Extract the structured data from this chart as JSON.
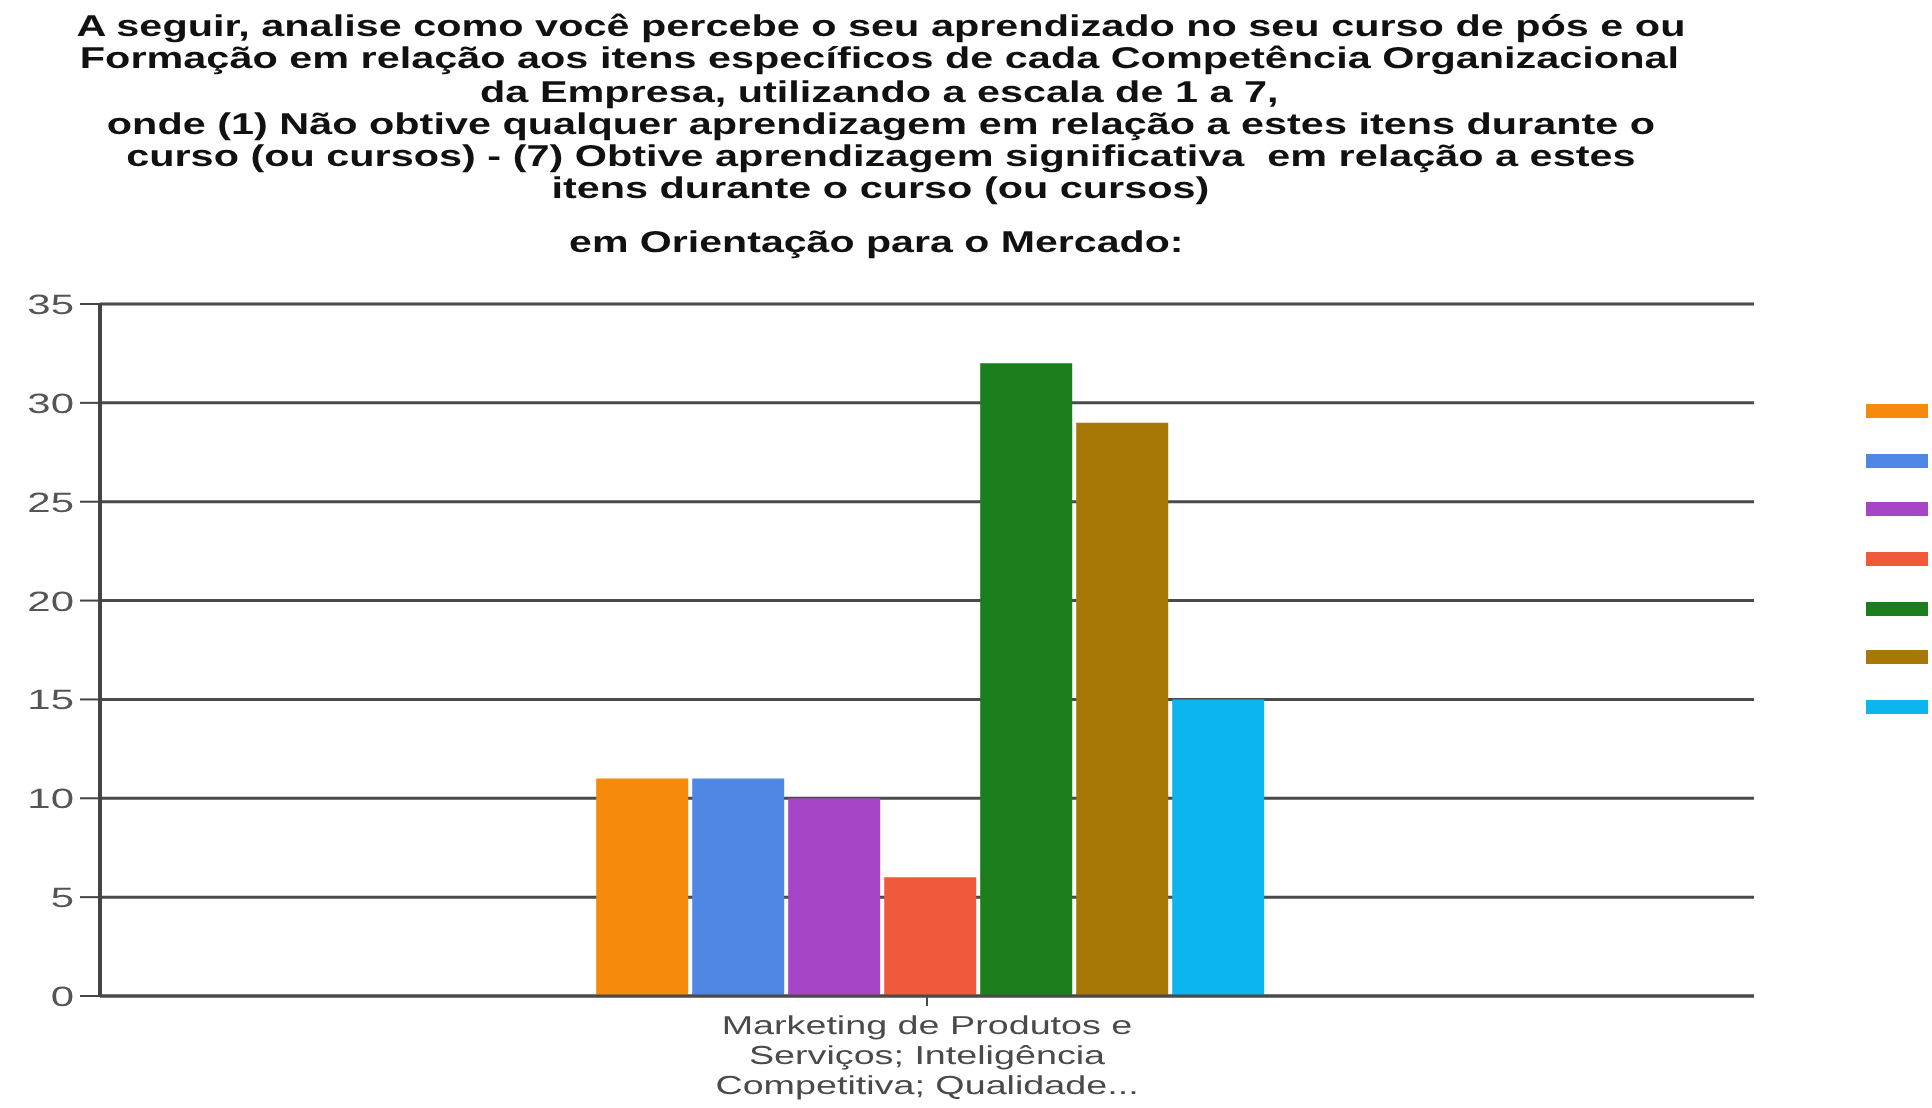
{
  "chart_data": {
    "type": "bar",
    "title": "A seguir, analise como você percebe o seu aprendizado no seu curso de pós e ou\nFormação em relação aos itens específicos de cada Competência Organizacional\nda Empresa, utilizando a escala de 1 a 7,\nonde (1) Não obtive qualquer aprendizagem em relação a estes itens durante o\ncurso (ou cursos) - (7) Obtive aprendizagem significativa  em relação a estes\nitens durante o curso (ou cursos)",
    "subtitle": "em Orientação para o Mercado:",
    "categories": [
      "Marketing de Produtos e Serviços; Inteligência Competitiva; Qualidade..."
    ],
    "series": [
      {
        "color": "#f68a0c",
        "values": [
          11
        ]
      },
      {
        "color": "#5087e4",
        "values": [
          11
        ]
      },
      {
        "color": "#a646c6",
        "values": [
          10
        ]
      },
      {
        "color": "#ef5a3c",
        "values": [
          6
        ]
      },
      {
        "color": "#1b7d1b",
        "values": [
          32
        ]
      },
      {
        "color": "#a87806",
        "values": [
          29
        ]
      },
      {
        "color": "#0db5ef",
        "values": [
          15
        ]
      }
    ],
    "ylim": [
      0,
      35
    ],
    "yticks": [
      0,
      5,
      10,
      15,
      20,
      25,
      30,
      35
    ],
    "grid": "y"
  }
}
